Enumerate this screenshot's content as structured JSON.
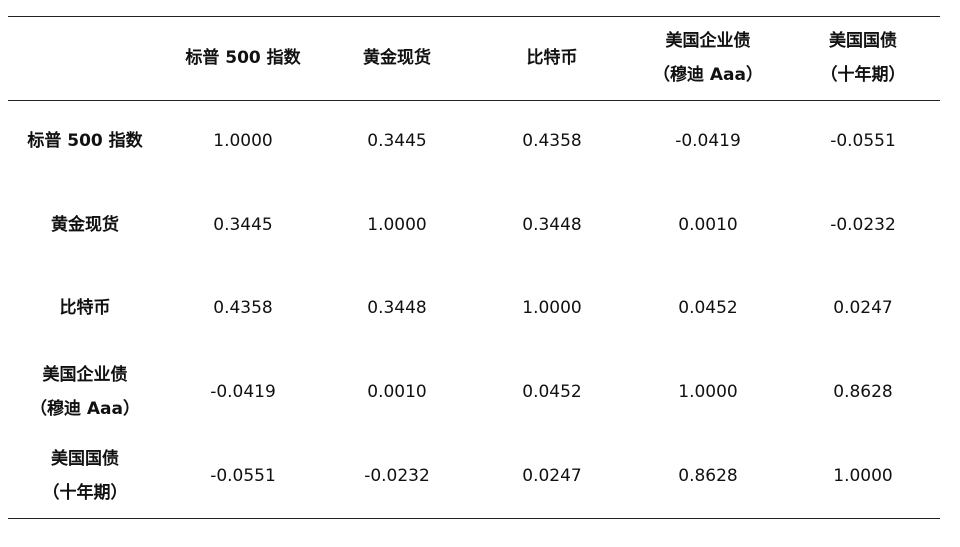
{
  "table": {
    "header": [
      [
        "标普 500 指数"
      ],
      [
        "黄金现货"
      ],
      [
        "比特币"
      ],
      [
        "美国企业债",
        "（穆迪 Aaa）"
      ],
      [
        "美国国债",
        "（十年期）"
      ]
    ],
    "rows": [
      {
        "label": [
          "标普 500 指数"
        ],
        "cells": [
          "1.0000",
          "0.3445",
          "0.4358",
          "-0.0419",
          "-0.0551"
        ]
      },
      {
        "label": [
          "黄金现货"
        ],
        "cells": [
          "0.3445",
          "1.0000",
          "0.3448",
          "0.0010",
          "-0.0232"
        ]
      },
      {
        "label": [
          "比特币"
        ],
        "cells": [
          "0.4358",
          "0.3448",
          "1.0000",
          "0.0452",
          "0.0247"
        ]
      },
      {
        "label": [
          "美国企业债",
          "（穆迪 Aaa）"
        ],
        "cells": [
          "-0.0419",
          "0.0010",
          "0.0452",
          "1.0000",
          "0.8628"
        ]
      },
      {
        "label": [
          "美国国债",
          "（十年期）"
        ],
        "cells": [
          "-0.0551",
          "-0.0232",
          "0.0247",
          "0.8628",
          "1.0000"
        ]
      }
    ]
  }
}
